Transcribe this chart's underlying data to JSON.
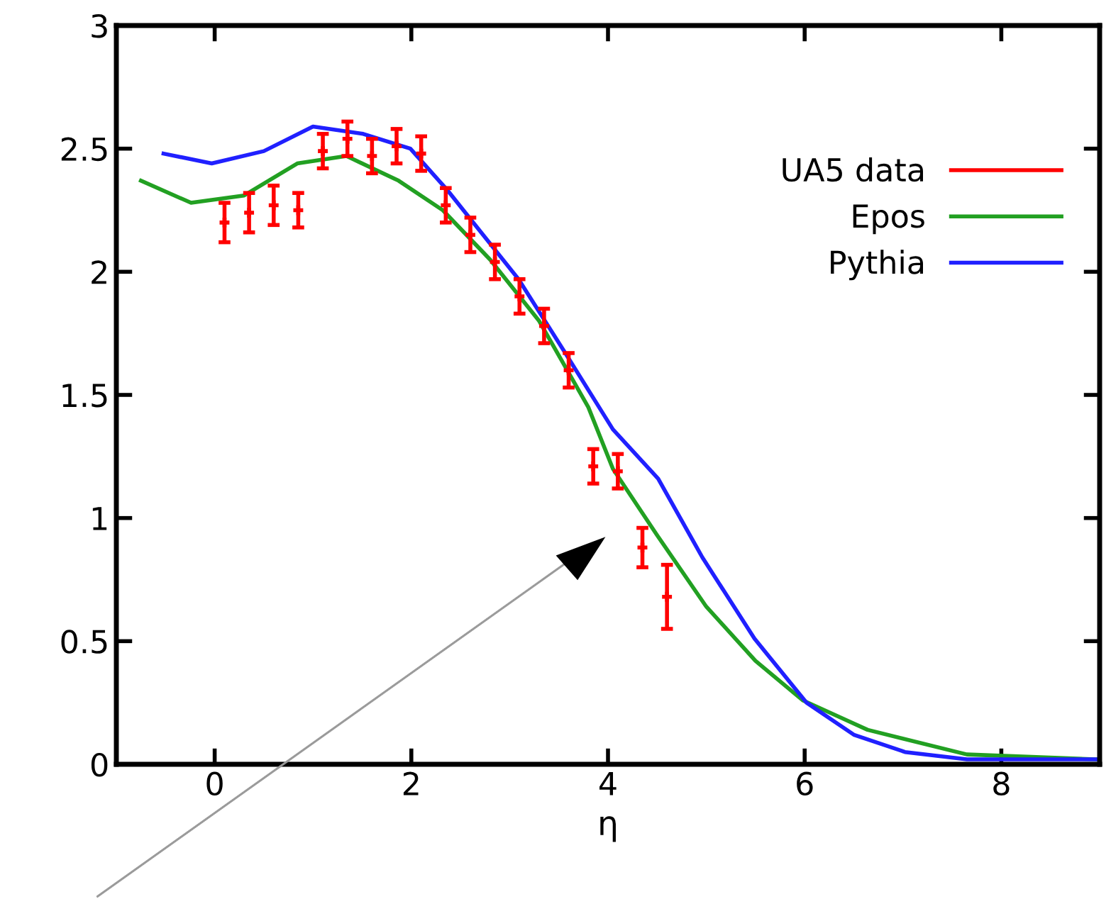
{
  "chart_data": {
    "type": "line",
    "xlabel": "η",
    "xlim": [
      -1,
      9
    ],
    "xticks": [
      0,
      2,
      4,
      6,
      8
    ],
    "ylim": [
      0,
      3
    ],
    "yticks": [
      0,
      0.5,
      1,
      1.5,
      2,
      2.5,
      3
    ],
    "grid": false,
    "legend": "top right",
    "marker": "none",
    "line_style": "solid",
    "series": [
      {
        "name": "UA5 data",
        "type": "scatter",
        "marker": "cross",
        "color": "#ff0000",
        "x": [
          0.1,
          0.35,
          0.6,
          0.85,
          1.1,
          1.35,
          1.6,
          1.85,
          2.1,
          2.35,
          2.6,
          2.85,
          3.1,
          3.35,
          3.6,
          3.85,
          4.1,
          4.35,
          4.6
        ],
        "values": [
          2.2,
          2.24,
          2.27,
          2.25,
          2.49,
          2.54,
          2.47,
          2.51,
          2.48,
          2.27,
          2.15,
          2.04,
          1.9,
          1.78,
          1.6,
          1.21,
          1.19,
          0.88,
          0.68
        ],
        "errors": [
          0.08,
          0.08,
          0.08,
          0.07,
          0.07,
          0.07,
          0.07,
          0.07,
          0.07,
          0.07,
          0.07,
          0.07,
          0.07,
          0.07,
          0.07,
          0.07,
          0.07,
          0.08,
          0.13
        ]
      },
      {
        "name": "Epos",
        "color": "#22a022",
        "x": [
          -0.75,
          -0.24,
          0.3,
          0.84,
          1.34,
          1.87,
          2.32,
          2.8,
          3.3,
          3.8,
          4.05,
          4.5,
          5.0,
          5.5,
          5.98,
          6.64,
          7.65,
          8.98
        ],
        "values": [
          2.37,
          2.28,
          2.31,
          2.44,
          2.47,
          2.37,
          2.25,
          2.05,
          1.8,
          1.45,
          1.2,
          0.93,
          0.64,
          0.42,
          0.26,
          0.14,
          0.04,
          0.02
        ]
      },
      {
        "name": "Pythia",
        "color": "#2020ff",
        "x": [
          -0.52,
          -0.03,
          0.5,
          1.0,
          1.51,
          1.99,
          2.37,
          2.61,
          3.09,
          3.55,
          4.05,
          4.51,
          4.96,
          5.49,
          6.02,
          6.5,
          7.02,
          7.65,
          8.98
        ],
        "values": [
          2.48,
          2.44,
          2.49,
          2.59,
          2.56,
          2.5,
          2.33,
          2.21,
          1.97,
          1.68,
          1.36,
          1.16,
          0.84,
          0.51,
          0.25,
          0.12,
          0.05,
          0.02,
          0.02
        ]
      }
    ]
  }
}
